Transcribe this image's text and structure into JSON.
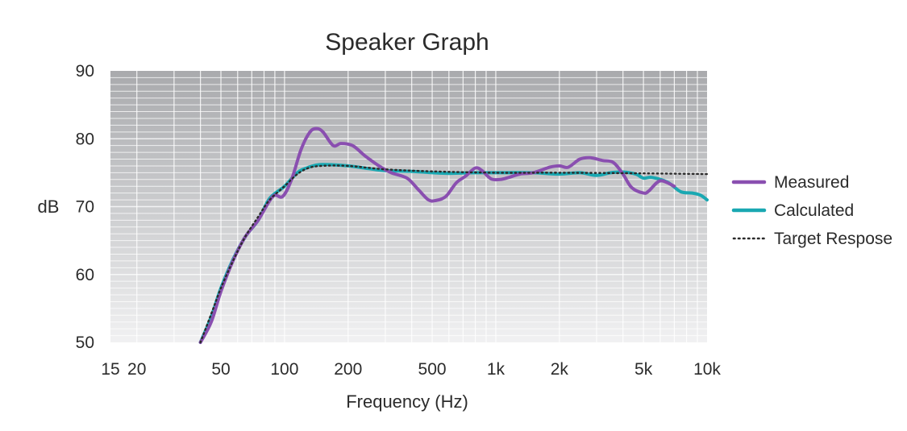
{
  "chart_data": {
    "type": "line",
    "title": "Speaker Graph",
    "xlabel": "Frequency (Hz)",
    "ylabel": "dB",
    "x_scale": "log",
    "xlim": [
      15,
      10000
    ],
    "ylim": [
      50,
      90
    ],
    "x_ticks": [
      {
        "value": 15,
        "label": "15"
      },
      {
        "value": 20,
        "label": "20"
      },
      {
        "value": 50,
        "label": "50"
      },
      {
        "value": 100,
        "label": "100"
      },
      {
        "value": 200,
        "label": "200"
      },
      {
        "value": 500,
        "label": "500"
      },
      {
        "value": 1000,
        "label": "1k"
      },
      {
        "value": 2000,
        "label": "2k"
      },
      {
        "value": 5000,
        "label": "5k"
      },
      {
        "value": 10000,
        "label": "10k"
      }
    ],
    "y_ticks": [
      {
        "value": 50,
        "label": "50"
      },
      {
        "value": 60,
        "label": "60"
      },
      {
        "value": 70,
        "label": "70"
      },
      {
        "value": 80,
        "label": "80"
      },
      {
        "value": 90,
        "label": "90"
      }
    ],
    "grid": true,
    "legend_position": "right",
    "series": [
      {
        "name": "Measured",
        "color": "#8a4fb0",
        "style": "solid",
        "points": [
          [
            40,
            50
          ],
          [
            45,
            53
          ],
          [
            50,
            57.5
          ],
          [
            57,
            62
          ],
          [
            65,
            65.5
          ],
          [
            75,
            68
          ],
          [
            88,
            71.5
          ],
          [
            98,
            71.5
          ],
          [
            108,
            74
          ],
          [
            120,
            78.5
          ],
          [
            132,
            81
          ],
          [
            142,
            81.5
          ],
          [
            152,
            81
          ],
          [
            170,
            79
          ],
          [
            185,
            79.3
          ],
          [
            210,
            79
          ],
          [
            240,
            77.5
          ],
          [
            280,
            76
          ],
          [
            320,
            75
          ],
          [
            380,
            74.2
          ],
          [
            430,
            72.5
          ],
          [
            480,
            71
          ],
          [
            520,
            70.9
          ],
          [
            580,
            71.5
          ],
          [
            650,
            73.5
          ],
          [
            720,
            74.5
          ],
          [
            800,
            75.7
          ],
          [
            860,
            75.3
          ],
          [
            950,
            74.1
          ],
          [
            1050,
            74
          ],
          [
            1150,
            74.3
          ],
          [
            1300,
            74.8
          ],
          [
            1500,
            75
          ],
          [
            1800,
            75.8
          ],
          [
            2000,
            76
          ],
          [
            2200,
            75.8
          ],
          [
            2500,
            77
          ],
          [
            2800,
            77.2
          ],
          [
            3200,
            76.8
          ],
          [
            3600,
            76.5
          ],
          [
            4000,
            74.8
          ],
          [
            4400,
            72.8
          ],
          [
            5000,
            72
          ],
          [
            5300,
            72.3
          ],
          [
            6000,
            73.8
          ],
          [
            7000,
            73
          ]
        ]
      },
      {
        "name": "Calculated",
        "color": "#1aa8b2",
        "style": "solid",
        "points": [
          [
            40,
            50
          ],
          [
            45,
            53.8
          ],
          [
            50,
            58
          ],
          [
            57,
            62.2
          ],
          [
            65,
            65.5
          ],
          [
            75,
            68
          ],
          [
            85,
            71.2
          ],
          [
            100,
            73
          ],
          [
            115,
            75
          ],
          [
            130,
            75.8
          ],
          [
            150,
            76.2
          ],
          [
            200,
            76
          ],
          [
            250,
            75.6
          ],
          [
            300,
            75.3
          ],
          [
            400,
            75.2
          ],
          [
            500,
            75
          ],
          [
            600,
            74.9
          ],
          [
            800,
            75
          ],
          [
            1000,
            75
          ],
          [
            1500,
            75
          ],
          [
            2000,
            74.8
          ],
          [
            2500,
            75
          ],
          [
            3000,
            74.6
          ],
          [
            3500,
            75
          ],
          [
            4000,
            75.1
          ],
          [
            4600,
            74.8
          ],
          [
            5000,
            74.2
          ],
          [
            5500,
            74.3
          ],
          [
            6500,
            73.6
          ],
          [
            7500,
            72.2
          ],
          [
            8500,
            72
          ],
          [
            9300,
            71.7
          ],
          [
            10000,
            71
          ]
        ]
      },
      {
        "name": "Target Respose",
        "color": "#2b2b2b",
        "style": "dotted",
        "points": [
          [
            40,
            50
          ],
          [
            45,
            54.2
          ],
          [
            50,
            58
          ],
          [
            57,
            62
          ],
          [
            65,
            65.5
          ],
          [
            75,
            68.5
          ],
          [
            85,
            71
          ],
          [
            100,
            73
          ],
          [
            115,
            74.8
          ],
          [
            130,
            75.7
          ],
          [
            150,
            76
          ],
          [
            200,
            76
          ],
          [
            300,
            75.5
          ],
          [
            500,
            75.2
          ],
          [
            1000,
            75
          ],
          [
            2000,
            75
          ],
          [
            5000,
            74.9
          ],
          [
            10000,
            74.8
          ]
        ]
      }
    ]
  }
}
